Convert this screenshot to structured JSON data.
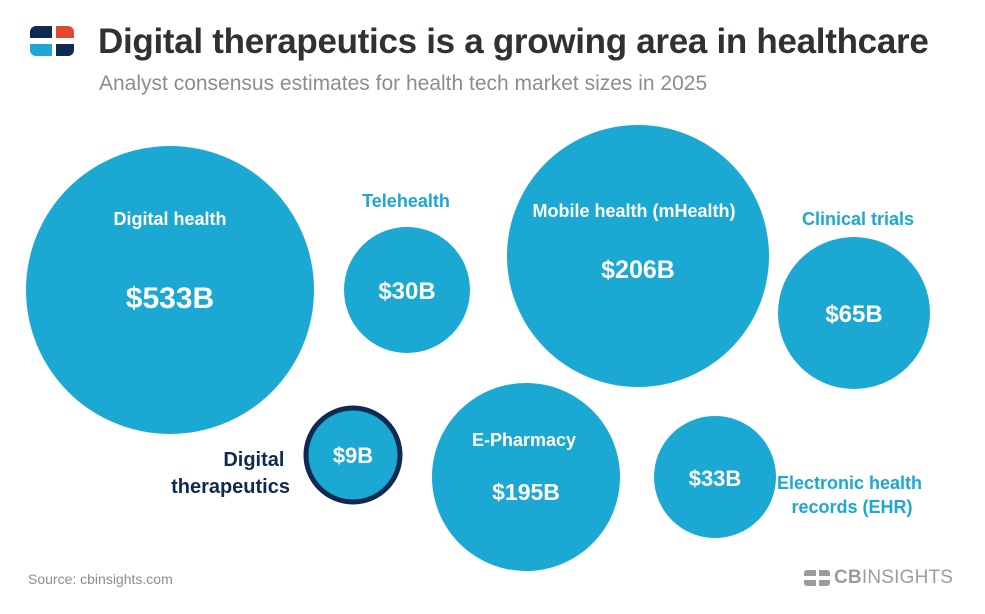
{
  "header": {
    "title": "Digital therapeutics is a growing area in healthcare",
    "subtitle": "Analyst consensus estimates for health tech market sizes in 2025"
  },
  "footer": {
    "source": "Source: cbinsights.com",
    "brand_bold": "CB",
    "brand_rest": "INSIGHTS"
  },
  "colors": {
    "bubble": "#1ba8d3",
    "highlight_border": "#0e2a52",
    "title": "#2f3235",
    "muted": "#8a8d90"
  },
  "icons": {
    "logo": "cb-insights-logo-icon",
    "brand": "cb-insights-wordmark-icon"
  },
  "chart_data": {
    "type": "bubble",
    "unit": "USD billions",
    "highlight": "Digital therapeutics",
    "series": [
      {
        "name": "Digital health",
        "value": 533,
        "value_label": "$533B"
      },
      {
        "name": "Telehealth",
        "value": 30,
        "value_label": "$30B"
      },
      {
        "name": "Mobile health (mHealth)",
        "value": 206,
        "value_label": "$206B"
      },
      {
        "name": "Clinical trials",
        "value": 65,
        "value_label": "$65B"
      },
      {
        "name": "Digital therapeutics",
        "value": 9,
        "value_label": "$9B"
      },
      {
        "name": "E-Pharmacy",
        "value": 195,
        "value_label": "$195B"
      },
      {
        "name": "Electronic health records (EHR)",
        "value": 33,
        "value_label": "$33B"
      }
    ]
  }
}
